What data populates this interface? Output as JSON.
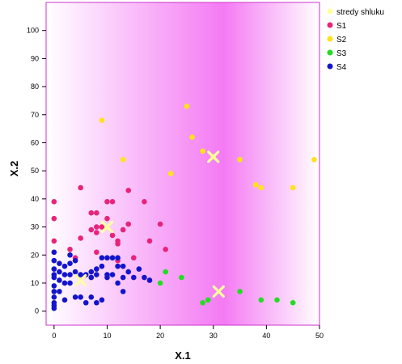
{
  "chart_data": {
    "type": "scatter",
    "xlabel": "X.1",
    "ylabel": "X.2",
    "xlim": [
      -1.5,
      50
    ],
    "ylim": [
      -5,
      110
    ],
    "xticks": [
      0,
      10,
      20,
      30,
      40,
      50
    ],
    "yticks": [
      0,
      10,
      20,
      30,
      40,
      50,
      60,
      70,
      80,
      90,
      100
    ],
    "background_gradient": [
      "#ffffff",
      "#f47af4",
      "#ffffff"
    ],
    "frame_color": "#cc33cc",
    "legend_position": "right",
    "legend": [
      {
        "label": "stredy shluku",
        "color": "#ffffa0"
      },
      {
        "label": "S1",
        "color": "#e8237a"
      },
      {
        "label": "S2",
        "color": "#ffe31a"
      },
      {
        "label": "S3",
        "color": "#22dd22"
      },
      {
        "label": "S4",
        "color": "#1414cc"
      }
    ],
    "series": [
      {
        "name": "S1",
        "color": "#e8237a",
        "points": [
          [
            0,
            39
          ],
          [
            0,
            33
          ],
          [
            0,
            25
          ],
          [
            3,
            22
          ],
          [
            4,
            19
          ],
          [
            5,
            44
          ],
          [
            5,
            26
          ],
          [
            7,
            35
          ],
          [
            8,
            35
          ],
          [
            7,
            29
          ],
          [
            8,
            28
          ],
          [
            8,
            30
          ],
          [
            8,
            21
          ],
          [
            9,
            30
          ],
          [
            10,
            39
          ],
          [
            11,
            39
          ],
          [
            10,
            33
          ],
          [
            11,
            27
          ],
          [
            12,
            25
          ],
          [
            12,
            24
          ],
          [
            13,
            29
          ],
          [
            14,
            43
          ],
          [
            14,
            31
          ],
          [
            15,
            19
          ],
          [
            17,
            39
          ],
          [
            18,
            25
          ],
          [
            20,
            31
          ],
          [
            21,
            22
          ],
          [
            12,
            18
          ]
        ]
      },
      {
        "name": "S2",
        "color": "#ffe31a",
        "points": [
          [
            9,
            68
          ],
          [
            13,
            54
          ],
          [
            22,
            49
          ],
          [
            25,
            73
          ],
          [
            26,
            62
          ],
          [
            28,
            57
          ],
          [
            30,
            55
          ],
          [
            35,
            54
          ],
          [
            38,
            45
          ],
          [
            39,
            44
          ],
          [
            45,
            44
          ],
          [
            49,
            54
          ]
        ]
      },
      {
        "name": "S3",
        "color": "#22dd22",
        "points": [
          [
            20,
            10
          ],
          [
            21,
            14
          ],
          [
            24,
            12
          ],
          [
            28,
            3
          ],
          [
            29,
            4
          ],
          [
            35,
            7
          ],
          [
            39,
            4
          ],
          [
            42,
            4
          ],
          [
            45,
            3
          ]
        ]
      },
      {
        "name": "S4",
        "color": "#1414cc",
        "points": [
          [
            0,
            21
          ],
          [
            0,
            18
          ],
          [
            0,
            15
          ],
          [
            0,
            13
          ],
          [
            0,
            12
          ],
          [
            0,
            9
          ],
          [
            0,
            7
          ],
          [
            0,
            5
          ],
          [
            0,
            3
          ],
          [
            0,
            2
          ],
          [
            0,
            1
          ],
          [
            1,
            17
          ],
          [
            1,
            14
          ],
          [
            1,
            11
          ],
          [
            1,
            7
          ],
          [
            2,
            16
          ],
          [
            2,
            13
          ],
          [
            2,
            10
          ],
          [
            2,
            4
          ],
          [
            3,
            20
          ],
          [
            3,
            17
          ],
          [
            3,
            13
          ],
          [
            3,
            10
          ],
          [
            4,
            18
          ],
          [
            4,
            14
          ],
          [
            4,
            5
          ],
          [
            5,
            13
          ],
          [
            5,
            5
          ],
          [
            6,
            13
          ],
          [
            6,
            3
          ],
          [
            7,
            14
          ],
          [
            7,
            12
          ],
          [
            7,
            5
          ],
          [
            8,
            15
          ],
          [
            8,
            13
          ],
          [
            8,
            3
          ],
          [
            9,
            19
          ],
          [
            9,
            16
          ],
          [
            9,
            4
          ],
          [
            10,
            19
          ],
          [
            10,
            13
          ],
          [
            10,
            12
          ],
          [
            11,
            19
          ],
          [
            11,
            13
          ],
          [
            12,
            19
          ],
          [
            12,
            16
          ],
          [
            12,
            10
          ],
          [
            13,
            16
          ],
          [
            13,
            12
          ],
          [
            13,
            7
          ],
          [
            14,
            14
          ],
          [
            15,
            12
          ],
          [
            16,
            15
          ],
          [
            17,
            12
          ],
          [
            18,
            11
          ]
        ]
      },
      {
        "name": "stredy shluku",
        "color": "#ffffa0",
        "marker": "x",
        "points": [
          [
            5,
            11
          ],
          [
            10,
            30
          ],
          [
            30,
            55
          ],
          [
            31,
            7
          ]
        ]
      }
    ]
  }
}
